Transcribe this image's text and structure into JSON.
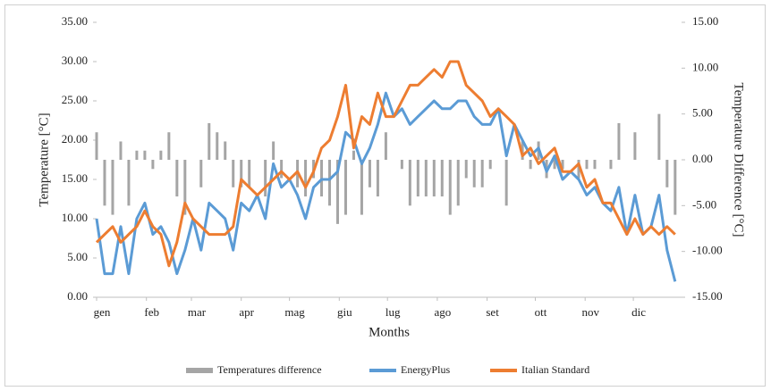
{
  "chart_data": {
    "type": "combo",
    "x_label": "Months",
    "y_label": "Temperature [°C]",
    "y2_label": "Temperature Difference [°C]",
    "x": [
      1,
      6,
      11,
      16,
      21,
      26,
      31,
      36,
      41,
      46,
      51,
      56,
      61,
      66,
      71,
      76,
      81,
      86,
      91,
      96,
      101,
      106,
      111,
      116,
      121,
      126,
      131,
      136,
      141,
      146,
      151,
      156,
      161,
      166,
      171,
      176,
      181,
      186,
      191,
      196,
      201,
      206,
      211,
      216,
      221,
      226,
      231,
      236,
      241,
      246,
      251,
      256,
      261,
      266,
      271,
      276,
      281,
      286,
      291,
      296,
      301,
      306,
      311,
      316,
      321,
      326,
      331,
      336,
      341,
      346,
      351,
      356,
      361
    ],
    "xlim": [
      1,
      365
    ],
    "xticks": [
      {
        "value": 1,
        "label": "gen"
      },
      {
        "value": 32,
        "label": "feb"
      },
      {
        "value": 60,
        "label": "mar"
      },
      {
        "value": 91,
        "label": "apr"
      },
      {
        "value": 121,
        "label": "mag"
      },
      {
        "value": 152,
        "label": "giu"
      },
      {
        "value": 182,
        "label": "lug"
      },
      {
        "value": 213,
        "label": "ago"
      },
      {
        "value": 244,
        "label": "set"
      },
      {
        "value": 274,
        "label": "ott"
      },
      {
        "value": 305,
        "label": "nov"
      },
      {
        "value": 335,
        "label": "dic"
      }
    ],
    "ylim": [
      0,
      35
    ],
    "yticks": [
      {
        "value": 0,
        "label": "0.00"
      },
      {
        "value": 5,
        "label": "5.00"
      },
      {
        "value": 10,
        "label": "10.00"
      },
      {
        "value": 15,
        "label": "15.00"
      },
      {
        "value": 20,
        "label": "20.00"
      },
      {
        "value": 25,
        "label": "25.00"
      },
      {
        "value": 30,
        "label": "30.00"
      },
      {
        "value": 35,
        "label": "35.00"
      }
    ],
    "y2lim": [
      -15,
      15
    ],
    "y2ticks": [
      {
        "value": -15,
        "label": "-15.00"
      },
      {
        "value": -10,
        "label": "-10.00"
      },
      {
        "value": -5,
        "label": "-5.00"
      },
      {
        "value": 0,
        "label": "0.00"
      },
      {
        "value": 5,
        "label": "5.00"
      },
      {
        "value": 10,
        "label": "10.00"
      },
      {
        "value": 15,
        "label": "15.00"
      }
    ],
    "series": [
      {
        "name": "Temperatures difference",
        "type": "bar",
        "axis": "y2",
        "color": "#a5a5a5",
        "values": [
          3,
          -5,
          -6,
          2,
          -5,
          1,
          1,
          -1,
          1,
          3,
          -4,
          -6,
          0,
          -3,
          4,
          3,
          2,
          -3,
          -3,
          -3,
          0,
          -4,
          2,
          -2,
          0,
          -3,
          -4,
          -2,
          -4,
          -5,
          -7,
          -6,
          1,
          -6,
          -3,
          -4,
          3,
          0,
          -1,
          -5,
          -4,
          -4,
          -4,
          -4,
          -6,
          -5,
          -2,
          -3,
          -3,
          -1,
          0,
          -5,
          0,
          2,
          -1,
          2,
          -2,
          -1,
          -1,
          0,
          -2,
          -1,
          -1,
          0,
          -1,
          4,
          0,
          3,
          0,
          0,
          5,
          -3,
          -6
        ]
      },
      {
        "name": "EnergyPlus",
        "type": "line",
        "color": "#5b9bd5",
        "values": [
          10,
          3,
          3,
          9,
          3,
          10,
          12,
          8,
          9,
          7,
          3,
          6,
          10,
          6,
          12,
          11,
          10,
          6,
          12,
          11,
          13,
          10,
          17,
          14,
          15,
          13,
          10,
          14,
          15,
          15,
          16,
          21,
          20,
          17,
          19,
          22,
          26,
          23,
          24,
          22,
          23,
          24,
          25,
          24,
          24,
          25,
          25,
          23,
          22,
          22,
          24,
          18,
          22,
          20,
          18,
          19,
          16,
          18,
          15,
          16,
          15,
          13,
          14,
          12,
          11,
          14,
          8,
          13,
          8,
          9,
          13,
          6,
          2
        ]
      },
      {
        "name": "Italian Standard",
        "type": "line",
        "color": "#ed7d31",
        "values": [
          7,
          8,
          9,
          7,
          8,
          9,
          11,
          9,
          8,
          4,
          7,
          12,
          10,
          9,
          8,
          8,
          8,
          9,
          15,
          14,
          13,
          14,
          15,
          16,
          15,
          16,
          14,
          16,
          19,
          20,
          23,
          27,
          19,
          23,
          22,
          26,
          23,
          23,
          25,
          27,
          27,
          28,
          29,
          28,
          30,
          30,
          27,
          26,
          25,
          23,
          24,
          23,
          22,
          18,
          19,
          17,
          18,
          19,
          16,
          16,
          17,
          14,
          15,
          12,
          12,
          10,
          8,
          10,
          8,
          9,
          8,
          9,
          8
        ]
      }
    ]
  }
}
